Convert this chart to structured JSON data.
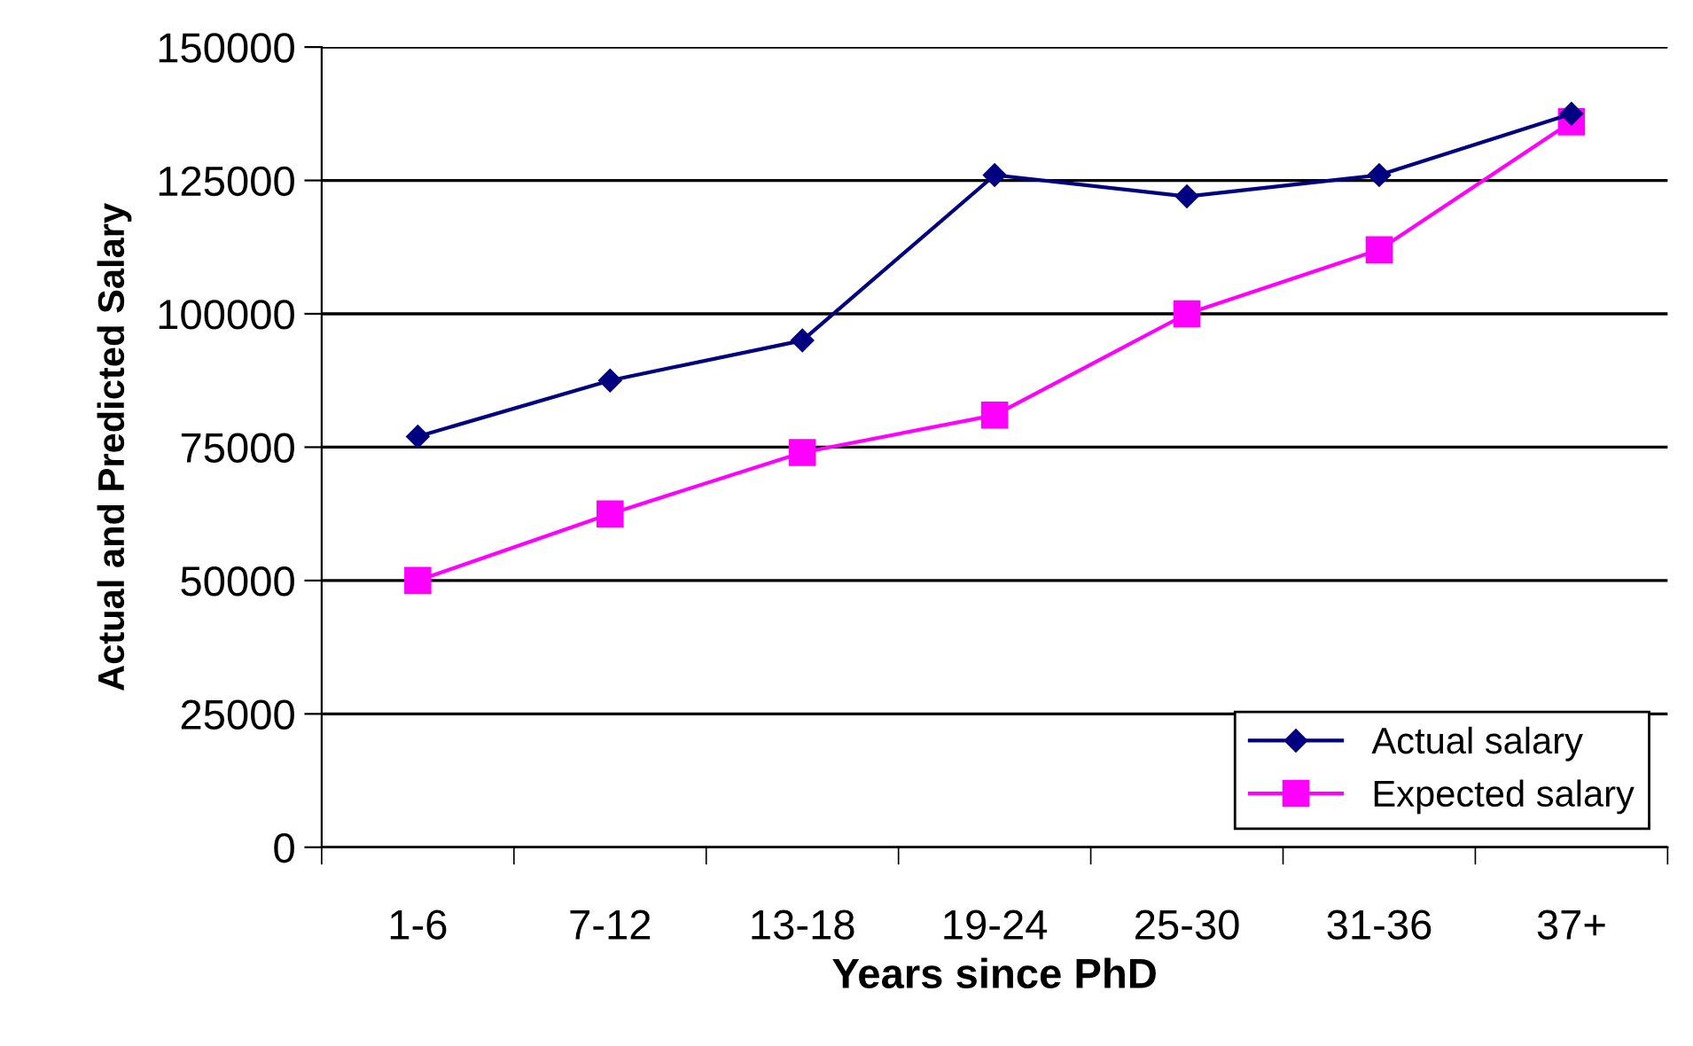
{
  "chart_data": {
    "type": "line",
    "xlabel": "Years since PhD",
    "ylabel": "Actual and Predicted Salary",
    "categories": [
      "1-6",
      "7-12",
      "13-18",
      "19-24",
      "25-30",
      "31-36",
      "37+"
    ],
    "series": [
      {
        "name": "Actual salary",
        "color": "#000080",
        "marker": "diamond",
        "values": [
          77000,
          87500,
          95000,
          126000,
          122000,
          126000,
          137500
        ]
      },
      {
        "name": "Expected salary",
        "color": "#ff00ff",
        "marker": "square",
        "values": [
          50000,
          62500,
          74000,
          81000,
          100000,
          112000,
          136000
        ]
      }
    ],
    "ylim": [
      0,
      150000
    ],
    "yticks": [
      0,
      25000,
      50000,
      75000,
      100000,
      125000,
      150000
    ],
    "grid": "y",
    "legend": "bottom right"
  }
}
